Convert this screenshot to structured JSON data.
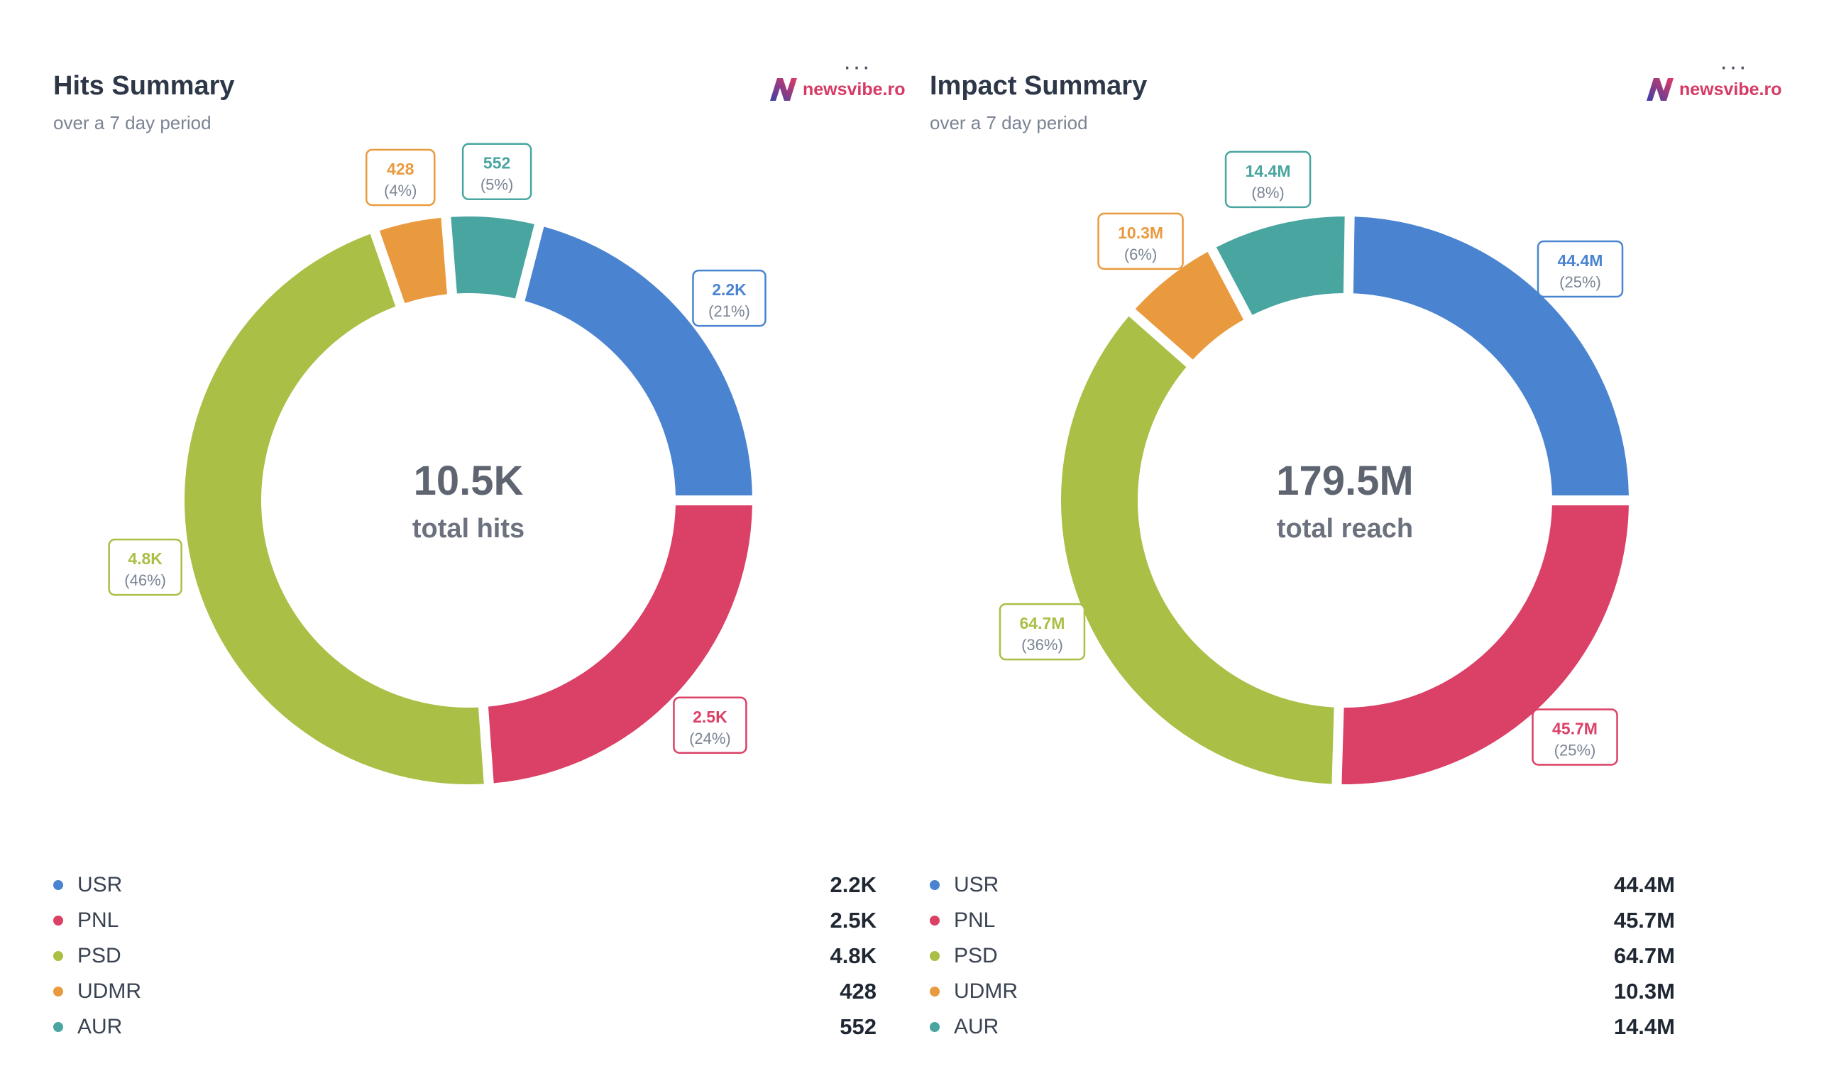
{
  "panels": [
    {
      "title": "Hits Summary",
      "subtitle": "over a 7 day period",
      "brand": "newsvibe.ro",
      "center_value": "10.5K",
      "center_label": "total hits",
      "legend": [
        {
          "label": "USR",
          "value": "2.2K"
        },
        {
          "label": "PNL",
          "value": "2.5K"
        },
        {
          "label": "PSD",
          "value": "4.8K"
        },
        {
          "label": "UDMR",
          "value": "428"
        },
        {
          "label": "AUR",
          "value": "552"
        }
      ]
    },
    {
      "title": "Impact Summary",
      "subtitle": "over a 7 day period",
      "brand": "newsvibe.ro",
      "center_value": "179.5M",
      "center_label": "total reach",
      "legend": [
        {
          "label": "USR",
          "value": "44.4M"
        },
        {
          "label": "PNL",
          "value": "45.7M"
        },
        {
          "label": "PSD",
          "value": "64.7M"
        },
        {
          "label": "UDMR",
          "value": "10.3M"
        },
        {
          "label": "AUR",
          "value": "14.4M"
        }
      ]
    }
  ],
  "chart_data": [
    {
      "type": "pie",
      "title": "Hits Summary",
      "subtitle": "over a 7 day period",
      "center_label": "total hits",
      "total": 10500,
      "total_label": "10.5K",
      "categories": [
        "USR",
        "AUR",
        "UDMR",
        "PSD",
        "PNL"
      ],
      "values": [
        2200,
        552,
        428,
        4800,
        2500
      ],
      "labels": [
        "2.2K",
        "552",
        "428",
        "4.8K",
        "2.5K"
      ],
      "percents": [
        "(21%)",
        "(5%)",
        "(4%)",
        "(46%)",
        "(24%)"
      ],
      "colors": [
        "#4a84d0",
        "#48a5a0",
        "#ea9a3e",
        "#a9bf45",
        "#db4066"
      ]
    },
    {
      "type": "pie",
      "title": "Impact Summary",
      "subtitle": "over a 7 day period",
      "center_label": "total reach",
      "total": 179500000,
      "total_label": "179.5M",
      "categories": [
        "USR",
        "AUR",
        "UDMR",
        "PSD",
        "PNL"
      ],
      "values": [
        44400000,
        14400000,
        10300000,
        64700000,
        45700000
      ],
      "labels": [
        "44.4M",
        "14.4M",
        "10.3M",
        "64.7M",
        "45.7M"
      ],
      "percents": [
        "(25%)",
        "(8%)",
        "(6%)",
        "(36%)",
        "(25%)"
      ],
      "colors": [
        "#4a84d0",
        "#48a5a0",
        "#ea9a3e",
        "#a9bf45",
        "#db4066"
      ]
    }
  ],
  "legend_colors": {
    "USR": "#4a84d0",
    "PNL": "#db4066",
    "PSD": "#a9bf45",
    "UDMR": "#ea9a3e",
    "AUR": "#48a5a0"
  }
}
